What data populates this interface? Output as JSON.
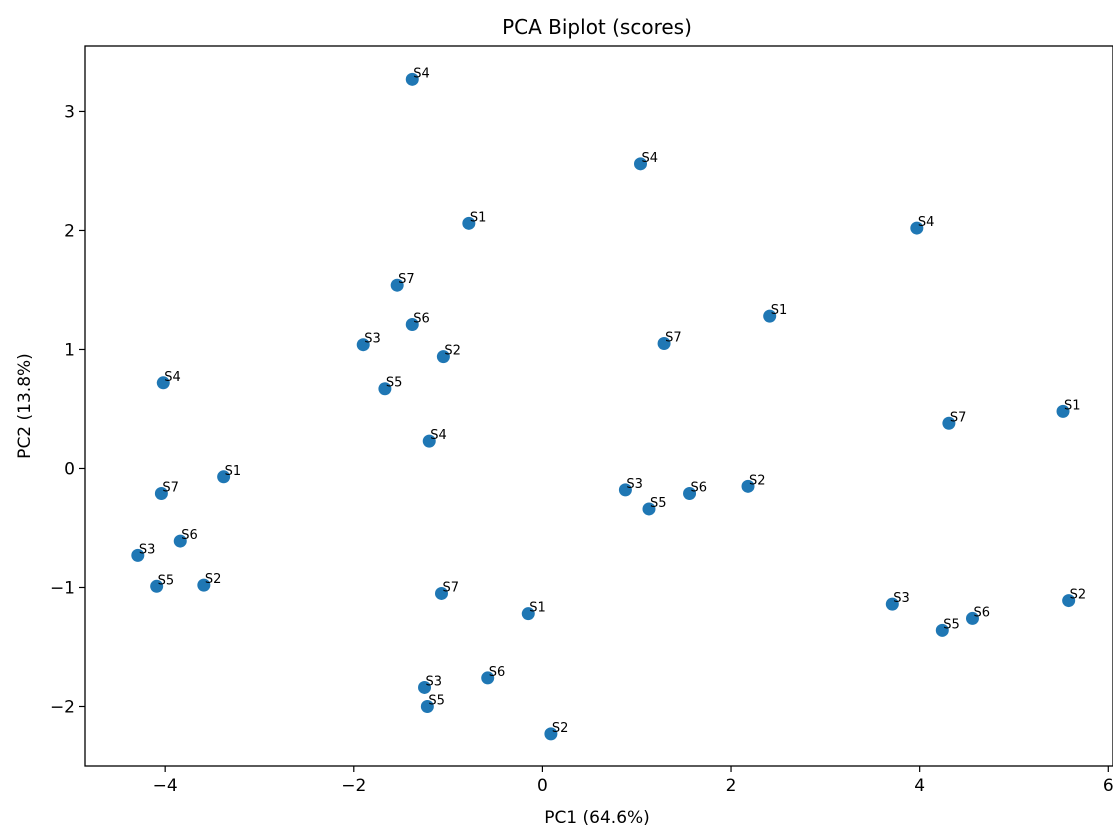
{
  "chart_data": {
    "type": "scatter",
    "title": "PCA Biplot (scores)",
    "xlabel": "PC1 (64.6%)",
    "ylabel": "PC2 (13.8%)",
    "xlim": [
      -4.85,
      6.05
    ],
    "ylim": [
      -2.5,
      3.55
    ],
    "xticks": [
      -4,
      -2,
      0,
      2,
      4,
      6
    ],
    "xtick_labels": [
      "−4",
      "−2",
      "0",
      "2",
      "4",
      "6"
    ],
    "yticks": [
      -2,
      -1,
      0,
      1,
      2,
      3
    ],
    "ytick_labels": [
      "−2",
      "−1",
      "0",
      "1",
      "2",
      "3"
    ],
    "grid": false,
    "marker_color": "#1f77b4",
    "points": [
      {
        "x": -1.38,
        "y": 3.27,
        "label": "S4"
      },
      {
        "x": 1.04,
        "y": 2.56,
        "label": "S4"
      },
      {
        "x": -0.78,
        "y": 2.06,
        "label": "S1"
      },
      {
        "x": 3.97,
        "y": 2.02,
        "label": "S4"
      },
      {
        "x": -1.54,
        "y": 1.54,
        "label": "S7"
      },
      {
        "x": 2.41,
        "y": 1.28,
        "label": "S1"
      },
      {
        "x": -1.38,
        "y": 1.21,
        "label": "S6"
      },
      {
        "x": -1.9,
        "y": 1.04,
        "label": "S3"
      },
      {
        "x": 1.29,
        "y": 1.05,
        "label": "S7"
      },
      {
        "x": -1.05,
        "y": 0.94,
        "label": "S2"
      },
      {
        "x": -4.02,
        "y": 0.72,
        "label": "S4"
      },
      {
        "x": -1.67,
        "y": 0.67,
        "label": "S5"
      },
      {
        "x": 5.52,
        "y": 0.48,
        "label": "S1"
      },
      {
        "x": 4.31,
        "y": 0.38,
        "label": "S7"
      },
      {
        "x": -1.2,
        "y": 0.23,
        "label": "S4"
      },
      {
        "x": -3.38,
        "y": -0.07,
        "label": "S1"
      },
      {
        "x": 2.18,
        "y": -0.15,
        "label": "S2"
      },
      {
        "x": 0.88,
        "y": -0.18,
        "label": "S3"
      },
      {
        "x": 1.56,
        "y": -0.21,
        "label": "S6"
      },
      {
        "x": -4.04,
        "y": -0.21,
        "label": "S7"
      },
      {
        "x": 1.13,
        "y": -0.34,
        "label": "S5"
      },
      {
        "x": -3.84,
        "y": -0.61,
        "label": "S6"
      },
      {
        "x": -4.29,
        "y": -0.73,
        "label": "S3"
      },
      {
        "x": -3.59,
        "y": -0.98,
        "label": "S2"
      },
      {
        "x": -4.09,
        "y": -0.99,
        "label": "S5"
      },
      {
        "x": -1.07,
        "y": -1.05,
        "label": "S7"
      },
      {
        "x": 5.58,
        "y": -1.11,
        "label": "S2"
      },
      {
        "x": 3.71,
        "y": -1.14,
        "label": "S3"
      },
      {
        "x": -0.15,
        "y": -1.22,
        "label": "S1"
      },
      {
        "x": 4.56,
        "y": -1.26,
        "label": "S6"
      },
      {
        "x": 4.24,
        "y": -1.36,
        "label": "S5"
      },
      {
        "x": -0.58,
        "y": -1.76,
        "label": "S6"
      },
      {
        "x": -1.25,
        "y": -1.84,
        "label": "S3"
      },
      {
        "x": -1.22,
        "y": -2.0,
        "label": "S5"
      },
      {
        "x": 0.09,
        "y": -2.23,
        "label": "S2"
      }
    ]
  }
}
